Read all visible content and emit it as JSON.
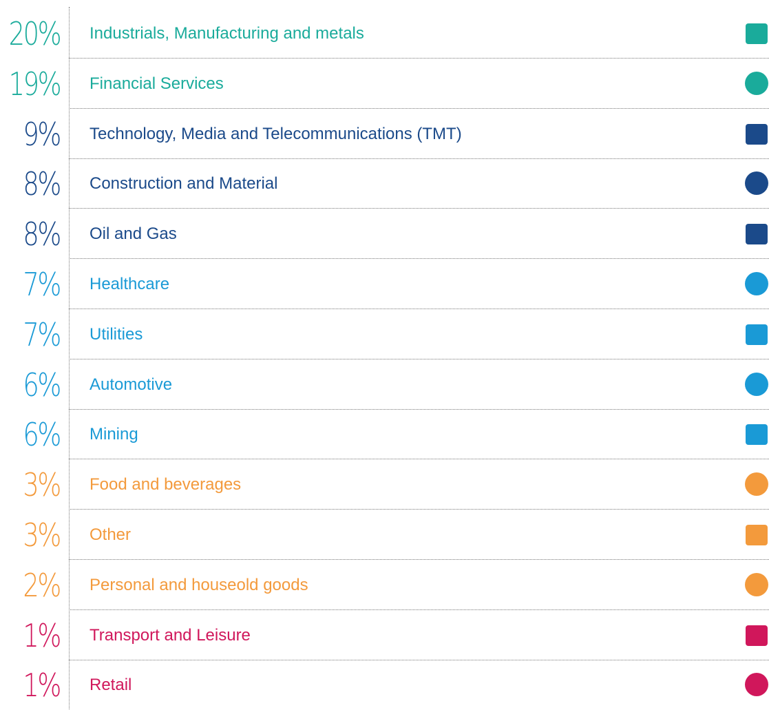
{
  "rows": [
    {
      "percent": "20%",
      "label": "Industrials, Manufacturing and metals",
      "color": "#1aab9b"
    },
    {
      "percent": "19%",
      "label": "Financial Services",
      "color": "#1aab9b"
    },
    {
      "percent": "9%",
      "label": "Technology, Media and Telecommunications (TMT)",
      "color": "#1b4a8a"
    },
    {
      "percent": "8%",
      "label": "Construction and Material",
      "color": "#1b4a8a"
    },
    {
      "percent": "8%",
      "label": "Oil and Gas",
      "color": "#1b4a8a"
    },
    {
      "percent": "7%",
      "label": "Healthcare",
      "color": "#1a9ad6"
    },
    {
      "percent": "7%",
      "label": "Utilities",
      "color": "#1a9ad6"
    },
    {
      "percent": "6%",
      "label": "Automotive",
      "color": "#1a9ad6"
    },
    {
      "percent": "6%",
      "label": "Mining",
      "color": "#1a9ad6"
    },
    {
      "percent": "3%",
      "label": "Food and beverages",
      "color": "#f39a3c"
    },
    {
      "percent": "3%",
      "label": "Other",
      "color": "#f39a3c"
    },
    {
      "percent": "2%",
      "label": "Personal and houseold goods",
      "color": "#f39a3c"
    },
    {
      "percent": "1%",
      "label": "Transport and Leisure",
      "color": "#d0175b"
    },
    {
      "percent": "1%",
      "label": "Retail",
      "color": "#d0175b"
    }
  ]
}
